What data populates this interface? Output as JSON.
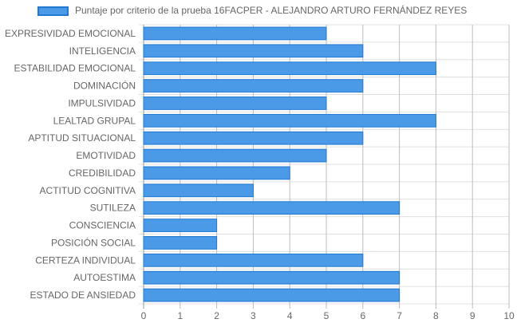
{
  "chart_data": {
    "type": "bar",
    "orientation": "horizontal",
    "legend": {
      "label": "Puntaje por criterio de la prueba 16FACPER - ALEJANDRO ARTURO FERNÁNDEZ REYES",
      "placement": "top"
    },
    "categories": [
      "EXPRESIVIDAD EMOCIONAL",
      "INTELIGENCIA",
      "ESTABILIDAD EMOCIONAL",
      "DOMINACIÓN",
      "IMPULSIVIDAD",
      "LEALTAD GRUPAL",
      "APTITUD SITUACIONAL",
      "EMOTIVIDAD",
      "CREDIBILIDAD",
      "ACTITUD COGNITIVA",
      "SUTILEZA",
      "CONSCIENCIA",
      "POSICIÓN SOCIAL",
      "CERTEZA INDIVIDUAL",
      "AUTOESTIMA",
      "ESTADO DE ANSIEDAD"
    ],
    "series": [
      {
        "name": "Puntaje por criterio de la prueba 16FACPER - ALEJANDRO ARTURO FERNÁNDEZ REYES",
        "values": [
          5,
          6,
          8,
          6,
          5,
          8,
          6,
          5,
          4,
          3,
          7,
          2,
          2,
          6,
          7,
          7
        ]
      }
    ],
    "xlim": [
      0,
      10
    ],
    "x_ticks": [
      "0",
      "1",
      "2",
      "3",
      "4",
      "5",
      "6",
      "7",
      "8",
      "9",
      "10"
    ],
    "grid": true,
    "colors": {
      "bar_fill": "#4a9ae8",
      "bar_border": "#1f78d1",
      "grid": "#e0e0e0",
      "axis": "#999999",
      "text": "#666666"
    }
  }
}
